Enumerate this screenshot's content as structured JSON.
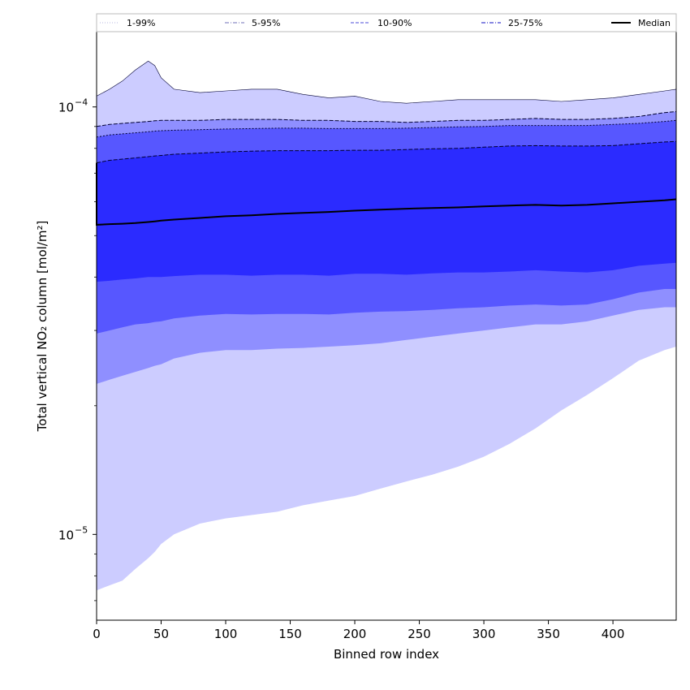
{
  "chart_data": {
    "type": "area",
    "xlabel": "Binned row index",
    "ylabel": "Total vertical NO₂ column [mol/m²]",
    "xlim": [
      0,
      449
    ],
    "ylim": [
      6.3e-06,
      0.00015
    ],
    "yscale": "log",
    "grid": false,
    "legend_position": "top",
    "x_ticks": [
      0,
      50,
      100,
      150,
      200,
      250,
      300,
      350,
      400
    ],
    "x_tick_labels": [
      "0",
      "50",
      "100",
      "150",
      "200",
      "250",
      "300",
      "350",
      "400"
    ],
    "y_ticks": [
      1e-05,
      0.0001
    ],
    "y_tick_labels": [
      {
        "base": "10",
        "exp": "−5"
      },
      {
        "base": "10",
        "exp": "−4"
      }
    ],
    "x": [
      0,
      10,
      20,
      30,
      40,
      45,
      50,
      60,
      80,
      100,
      120,
      140,
      160,
      180,
      200,
      220,
      240,
      260,
      280,
      300,
      320,
      340,
      360,
      380,
      400,
      420,
      440,
      449
    ],
    "bands": [
      {
        "name": "1-99%",
        "color": "#ccccff",
        "lower": [
          7.4e-06,
          7.6e-06,
          7.8e-06,
          8.3e-06,
          8.8e-06,
          9.1e-06,
          9.5e-06,
          1e-05,
          1.06e-05,
          1.09e-05,
          1.11e-05,
          1.13e-05,
          1.17e-05,
          1.2e-05,
          1.23e-05,
          1.28e-05,
          1.33e-05,
          1.38e-05,
          1.44e-05,
          1.52e-05,
          1.63e-05,
          1.77e-05,
          1.95e-05,
          2.12e-05,
          2.32e-05,
          2.55e-05,
          2.7e-05,
          2.75e-05
        ],
        "upper": [
          0.000106,
          0.00011,
          0.000115,
          0.000122,
          0.000128,
          0.000125,
          0.000117,
          0.00011,
          0.000108,
          0.000109,
          0.00011,
          0.00011,
          0.000107,
          0.000105,
          0.000106,
          0.000103,
          0.000102,
          0.000103,
          0.000104,
          0.000104,
          0.000104,
          0.000104,
          0.000103,
          0.000104,
          0.000105,
          0.000107,
          0.000109,
          0.00011
        ]
      },
      {
        "name": "5-95%",
        "color": "#8f8fff",
        "lower": [
          2.25e-05,
          2.3e-05,
          2.35e-05,
          2.4e-05,
          2.45e-05,
          2.48e-05,
          2.5e-05,
          2.58e-05,
          2.66e-05,
          2.7e-05,
          2.7e-05,
          2.72e-05,
          2.73e-05,
          2.75e-05,
          2.77e-05,
          2.8e-05,
          2.85e-05,
          2.9e-05,
          2.95e-05,
          3e-05,
          3.05e-05,
          3.1e-05,
          3.1e-05,
          3.15e-05,
          3.25e-05,
          3.35e-05,
          3.4e-05,
          3.4e-05
        ],
        "upper": [
          9e-05,
          9.1e-05,
          9.15e-05,
          9.2e-05,
          9.25e-05,
          9.28e-05,
          9.3e-05,
          9.3e-05,
          9.3e-05,
          9.35e-05,
          9.35e-05,
          9.35e-05,
          9.3e-05,
          9.3e-05,
          9.25e-05,
          9.25e-05,
          9.2e-05,
          9.25e-05,
          9.3e-05,
          9.3e-05,
          9.35e-05,
          9.4e-05,
          9.35e-05,
          9.35e-05,
          9.4e-05,
          9.5e-05,
          9.7e-05,
          9.75e-05
        ]
      },
      {
        "name": "10-90%",
        "color": "#5757ff",
        "lower": [
          2.95e-05,
          3e-05,
          3.05e-05,
          3.1e-05,
          3.12e-05,
          3.14e-05,
          3.15e-05,
          3.2e-05,
          3.25e-05,
          3.28e-05,
          3.27e-05,
          3.28e-05,
          3.28e-05,
          3.27e-05,
          3.3e-05,
          3.32e-05,
          3.33e-05,
          3.35e-05,
          3.38e-05,
          3.4e-05,
          3.43e-05,
          3.45e-05,
          3.43e-05,
          3.45e-05,
          3.55e-05,
          3.68e-05,
          3.75e-05,
          3.75e-05
        ],
        "upper": [
          8.5e-05,
          8.6e-05,
          8.65e-05,
          8.7e-05,
          8.75e-05,
          8.78e-05,
          8.8e-05,
          8.82e-05,
          8.85e-05,
          8.88e-05,
          8.9e-05,
          8.92e-05,
          8.92e-05,
          8.9e-05,
          8.9e-05,
          8.9e-05,
          8.92e-05,
          8.95e-05,
          8.98e-05,
          9e-05,
          9.05e-05,
          9.05e-05,
          9.05e-05,
          9.05e-05,
          9.1e-05,
          9.15e-05,
          9.25e-05,
          9.3e-05
        ]
      },
      {
        "name": "25-75%",
        "color": "#2b2bff",
        "lower": [
          3.9e-05,
          3.92e-05,
          3.95e-05,
          3.97e-05,
          4e-05,
          4e-05,
          4e-05,
          4.02e-05,
          4.05e-05,
          4.05e-05,
          4.03e-05,
          4.05e-05,
          4.05e-05,
          4.03e-05,
          4.07e-05,
          4.07e-05,
          4.05e-05,
          4.08e-05,
          4.1e-05,
          4.1e-05,
          4.12e-05,
          4.15e-05,
          4.12e-05,
          4.1e-05,
          4.15e-05,
          4.25e-05,
          4.3e-05,
          4.32e-05
        ],
        "upper": [
          7.4e-05,
          7.5e-05,
          7.55e-05,
          7.6e-05,
          7.65e-05,
          7.68e-05,
          7.7e-05,
          7.75e-05,
          7.8e-05,
          7.85e-05,
          7.88e-05,
          7.9e-05,
          7.9e-05,
          7.9e-05,
          7.92e-05,
          7.92e-05,
          7.95e-05,
          7.98e-05,
          8e-05,
          8.05e-05,
          8.1e-05,
          8.12e-05,
          8.1e-05,
          8.1e-05,
          8.12e-05,
          8.2e-05,
          8.28e-05,
          8.3e-05
        ]
      }
    ],
    "median": {
      "name": "Median",
      "color": "#000000",
      "values": [
        5.3e-05,
        5.32e-05,
        5.33e-05,
        5.35e-05,
        5.38e-05,
        5.4e-05,
        5.42e-05,
        5.45e-05,
        5.5e-05,
        5.55e-05,
        5.58e-05,
        5.62e-05,
        5.65e-05,
        5.68e-05,
        5.72e-05,
        5.75e-05,
        5.78e-05,
        5.8e-05,
        5.82e-05,
        5.85e-05,
        5.88e-05,
        5.9e-05,
        5.88e-05,
        5.9e-05,
        5.95e-05,
        6e-05,
        6.05e-05,
        6.08e-05
      ]
    },
    "legend": [
      {
        "label": "1-99%",
        "style": "dotted",
        "color": "#c8c8e8"
      },
      {
        "label": "5-95%",
        "style": "dashdot",
        "color": "#8c8cc8"
      },
      {
        "label": "10-90%",
        "style": "dashed",
        "color": "#7070e0"
      },
      {
        "label": "25-75%",
        "style": "dashdot",
        "color": "#4040d0"
      },
      {
        "label": "Median",
        "style": "solid",
        "color": "#000000"
      }
    ]
  }
}
